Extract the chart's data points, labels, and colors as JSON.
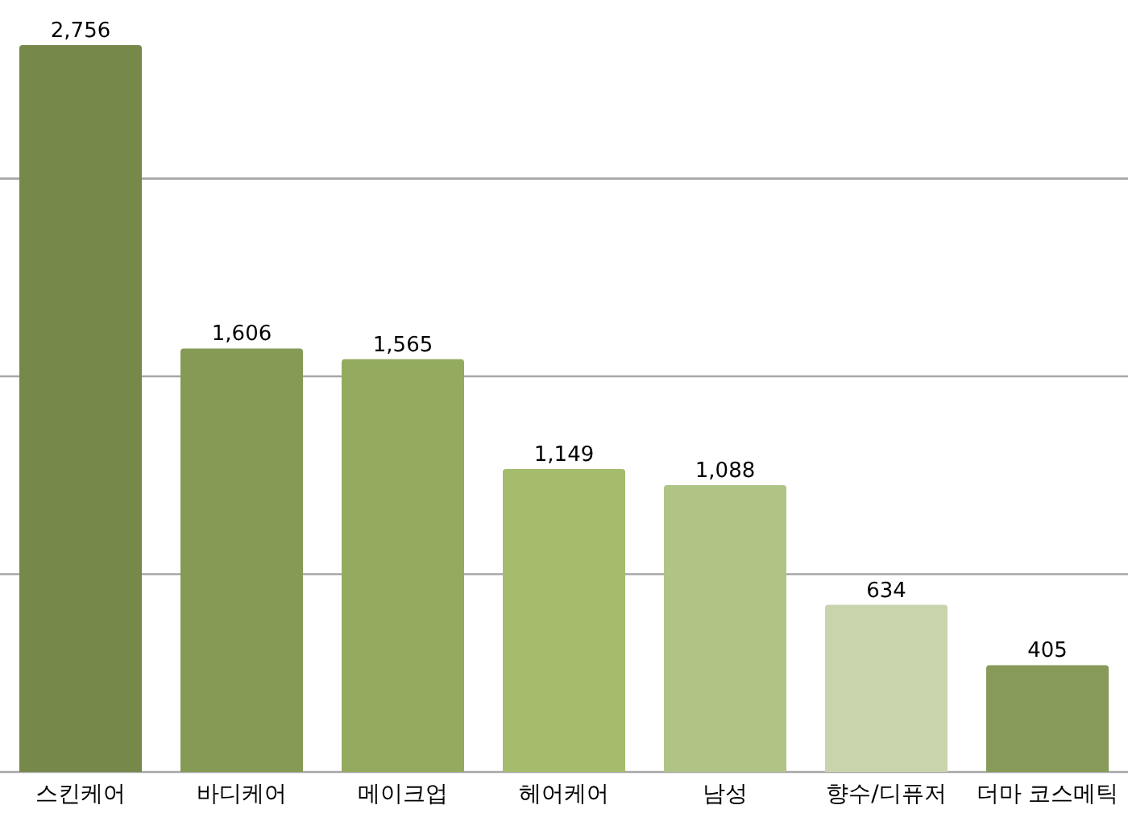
{
  "chart_data": {
    "type": "bar",
    "categories": [
      "스킨케어",
      "바디케어",
      "메이크업",
      "헤어케어",
      "남성",
      "향수/디퓨저",
      "더마 코스메틱"
    ],
    "values": [
      2756,
      1606,
      1565,
      1149,
      1088,
      634,
      405
    ],
    "colors": [
      "#76884a",
      "#849a55",
      "#93aa5f",
      "#a5bc6c",
      "#b0c486",
      "#c9d4ad",
      "#879a5a"
    ],
    "yticks": [
      {
        "value": 0,
        "label": null
      },
      {
        "value": 750,
        "label": null
      },
      {
        "value": 1500,
        "label": null
      },
      {
        "value": 2250,
        "label": null
      }
    ],
    "value_labels": [
      "2,756",
      "1,606",
      "1,565",
      "1,149",
      "1,088",
      "634",
      "405"
    ],
    "tick_labels": "x",
    "grid": "y"
  }
}
